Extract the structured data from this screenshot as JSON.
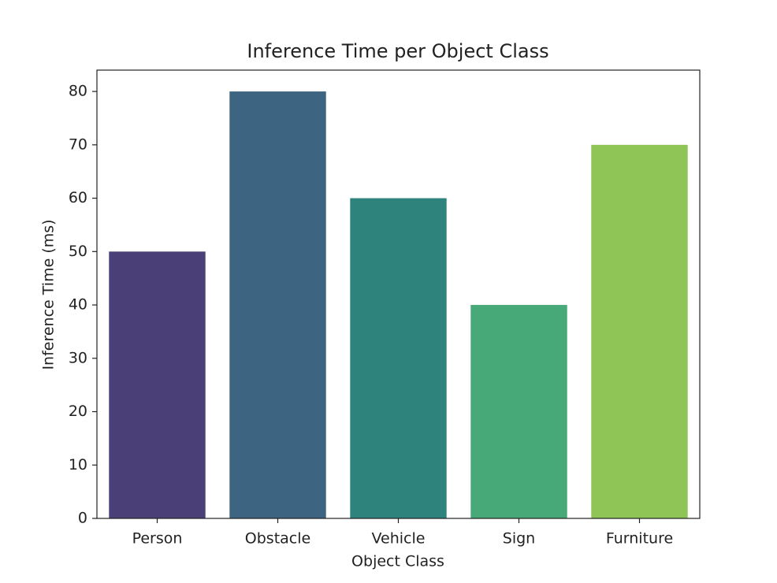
{
  "chart_data": {
    "type": "bar",
    "title": "Inference Time per Object Class",
    "x_label": "Object Class",
    "y_label": "Inference Time (ms)",
    "categories": [
      "Person",
      "Obstacle",
      "Vehicle",
      "Sign",
      "Furniture"
    ],
    "values": [
      50,
      80,
      60,
      40,
      70
    ],
    "colors": [
      "#4a3f77",
      "#3d6480",
      "#2e847c",
      "#48a978",
      "#8ec556"
    ],
    "ylim": [
      0,
      84
    ],
    "yticks": [
      0,
      10,
      20,
      30,
      40,
      50,
      60,
      70,
      80
    ],
    "grid": false
  }
}
